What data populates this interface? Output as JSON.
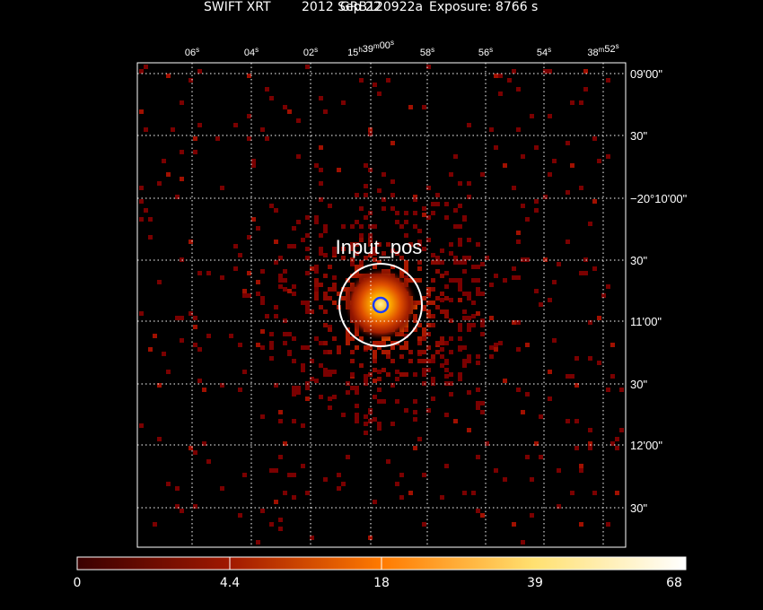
{
  "header": {
    "grb_name": "GRB120922a",
    "instrument": "SWIFT XRT",
    "date": "2012 Sep 22",
    "exposure": "Exposure: 8766 s"
  },
  "ra_labels": [
    {
      "h": "",
      "m": "",
      "s": "06",
      "unit": "s"
    },
    {
      "h": "",
      "m": "",
      "s": "04",
      "unit": "s"
    },
    {
      "h": "",
      "m": "",
      "s": "02",
      "unit": "s"
    },
    {
      "h": "15",
      "m": "39",
      "s": "00",
      "unit": "s"
    },
    {
      "h": "",
      "m": "",
      "s": "58",
      "unit": "s"
    },
    {
      "h": "",
      "m": "",
      "s": "56",
      "unit": "s"
    },
    {
      "h": "",
      "m": "",
      "s": "54",
      "unit": "s"
    },
    {
      "h": "",
      "m": "38",
      "s": "52",
      "unit": "s"
    }
  ],
  "dec_labels": [
    "09'00\"",
    "30\"",
    "−20°10'00\"",
    "30\"",
    "11'00\"",
    "30\"",
    "12'00\"",
    "30\""
  ],
  "source_label": "Input_pos",
  "colorbar": {
    "ticks": [
      "0",
      "4.4",
      "18",
      "39",
      "68"
    ],
    "colors": [
      "#3a0000",
      "#a01800",
      "#ff7a00",
      "#ffe070",
      "#ffffff"
    ]
  },
  "colors": {
    "grid": "#ffffff",
    "region_outer": "#ffffff",
    "region_inner": "#1a3cff"
  }
}
